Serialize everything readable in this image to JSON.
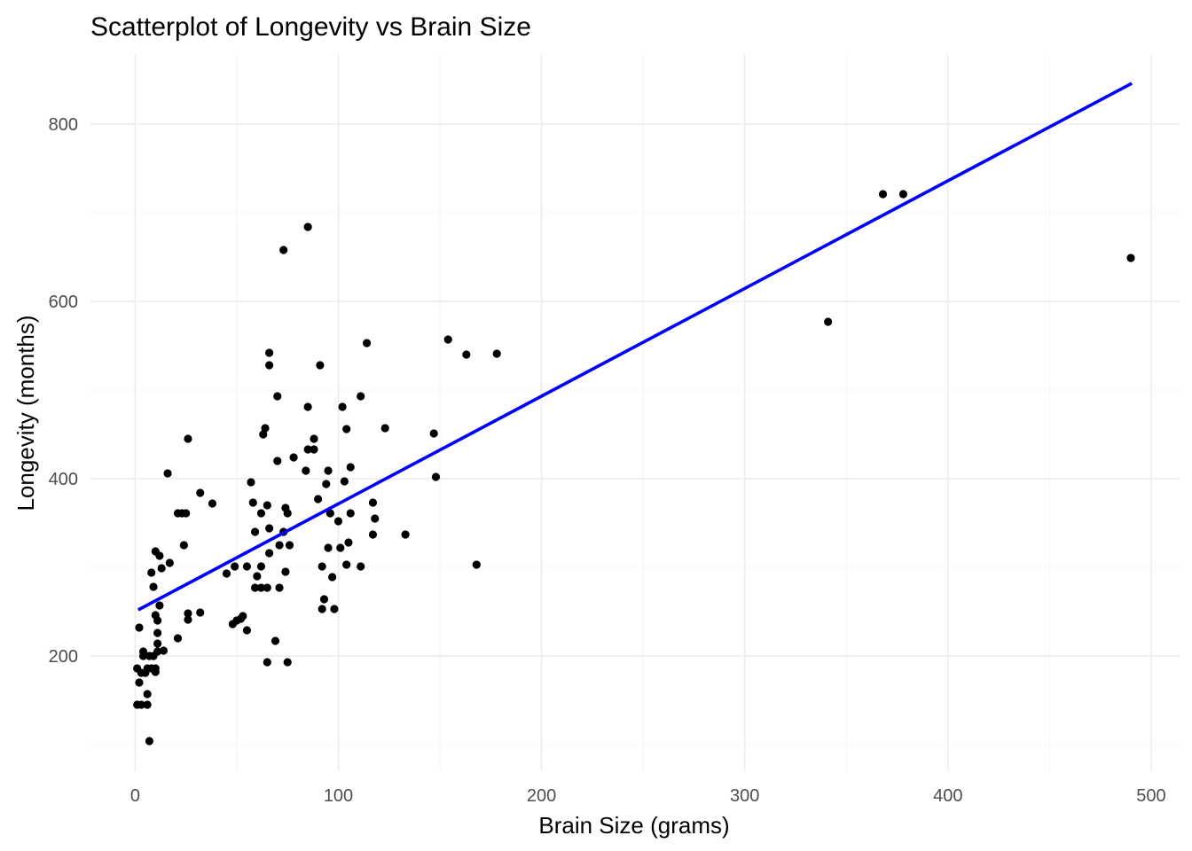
{
  "chart_data": {
    "type": "scatter",
    "title": "Scatterplot of Longevity vs Brain Size",
    "xlabel": "Brain Size (grams)",
    "ylabel": "Longevity (months)",
    "xlim": [
      -22,
      514
    ],
    "ylim": [
      70,
      878
    ],
    "x_ticks": [
      0,
      100,
      200,
      300,
      400,
      500
    ],
    "x_tick_labels": [
      "0",
      "100",
      "200",
      "300",
      "400",
      "500"
    ],
    "x_minor_ticks": [
      50,
      150,
      250,
      350,
      450
    ],
    "y_ticks": [
      200,
      400,
      600,
      800
    ],
    "y_tick_labels": [
      "200",
      "400",
      "600",
      "800"
    ],
    "y_minor_ticks": [
      100,
      300,
      500,
      700
    ],
    "grid": true,
    "legend": "none",
    "point_color": "#000000",
    "trend_line": {
      "type": "linear-fit",
      "color": "#0000ff",
      "x": [
        1.5,
        490.5
      ],
      "y": [
        252,
        846
      ]
    },
    "points": [
      {
        "x": 1,
        "y": 186
      },
      {
        "x": 1,
        "y": 145
      },
      {
        "x": 2,
        "y": 232
      },
      {
        "x": 2,
        "y": 170
      },
      {
        "x": 3,
        "y": 181
      },
      {
        "x": 3,
        "y": 145
      },
      {
        "x": 4,
        "y": 205
      },
      {
        "x": 4,
        "y": 200
      },
      {
        "x": 5,
        "y": 181
      },
      {
        "x": 6,
        "y": 186
      },
      {
        "x": 6,
        "y": 157
      },
      {
        "x": 6,
        "y": 145
      },
      {
        "x": 7,
        "y": 104
      },
      {
        "x": 7,
        "y": 200
      },
      {
        "x": 8,
        "y": 294
      },
      {
        "x": 8,
        "y": 186
      },
      {
        "x": 9,
        "y": 200
      },
      {
        "x": 9,
        "y": 278
      },
      {
        "x": 10,
        "y": 318
      },
      {
        "x": 10,
        "y": 246
      },
      {
        "x": 10,
        "y": 182
      },
      {
        "x": 10,
        "y": 186
      },
      {
        "x": 11,
        "y": 240
      },
      {
        "x": 11,
        "y": 226
      },
      {
        "x": 11,
        "y": 214
      },
      {
        "x": 11,
        "y": 205
      },
      {
        "x": 12,
        "y": 257
      },
      {
        "x": 12,
        "y": 313
      },
      {
        "x": 13,
        "y": 299
      },
      {
        "x": 14,
        "y": 206
      },
      {
        "x": 16,
        "y": 406
      },
      {
        "x": 17,
        "y": 305
      },
      {
        "x": 21,
        "y": 220
      },
      {
        "x": 21,
        "y": 361
      },
      {
        "x": 23,
        "y": 361
      },
      {
        "x": 24,
        "y": 325
      },
      {
        "x": 25,
        "y": 361
      },
      {
        "x": 26,
        "y": 445
      },
      {
        "x": 26,
        "y": 248
      },
      {
        "x": 26,
        "y": 241
      },
      {
        "x": 32,
        "y": 384
      },
      {
        "x": 32,
        "y": 249
      },
      {
        "x": 38,
        "y": 372
      },
      {
        "x": 45,
        "y": 293
      },
      {
        "x": 48,
        "y": 236
      },
      {
        "x": 49,
        "y": 301
      },
      {
        "x": 50,
        "y": 240
      },
      {
        "x": 52,
        "y": 242
      },
      {
        "x": 53,
        "y": 245
      },
      {
        "x": 55,
        "y": 229
      },
      {
        "x": 55,
        "y": 301
      },
      {
        "x": 57,
        "y": 396
      },
      {
        "x": 58,
        "y": 373
      },
      {
        "x": 59,
        "y": 277
      },
      {
        "x": 59,
        "y": 340
      },
      {
        "x": 60,
        "y": 290
      },
      {
        "x": 62,
        "y": 277
      },
      {
        "x": 62,
        "y": 361
      },
      {
        "x": 62,
        "y": 301
      },
      {
        "x": 63,
        "y": 450
      },
      {
        "x": 64,
        "y": 457
      },
      {
        "x": 65,
        "y": 193
      },
      {
        "x": 65,
        "y": 370
      },
      {
        "x": 65,
        "y": 277
      },
      {
        "x": 66,
        "y": 528
      },
      {
        "x": 66,
        "y": 542
      },
      {
        "x": 66,
        "y": 316
      },
      {
        "x": 66,
        "y": 344
      },
      {
        "x": 69,
        "y": 217
      },
      {
        "x": 70,
        "y": 420
      },
      {
        "x": 70,
        "y": 493
      },
      {
        "x": 71,
        "y": 277
      },
      {
        "x": 71,
        "y": 325
      },
      {
        "x": 73,
        "y": 658
      },
      {
        "x": 73,
        "y": 340
      },
      {
        "x": 74,
        "y": 367
      },
      {
        "x": 74,
        "y": 295
      },
      {
        "x": 75,
        "y": 361
      },
      {
        "x": 75,
        "y": 193
      },
      {
        "x": 76,
        "y": 325
      },
      {
        "x": 78,
        "y": 424
      },
      {
        "x": 84,
        "y": 409
      },
      {
        "x": 85,
        "y": 481
      },
      {
        "x": 85,
        "y": 433
      },
      {
        "x": 85,
        "y": 684
      },
      {
        "x": 88,
        "y": 445
      },
      {
        "x": 88,
        "y": 433
      },
      {
        "x": 90,
        "y": 377
      },
      {
        "x": 91,
        "y": 528
      },
      {
        "x": 92,
        "y": 301
      },
      {
        "x": 92,
        "y": 253
      },
      {
        "x": 93,
        "y": 264
      },
      {
        "x": 94,
        "y": 394
      },
      {
        "x": 95,
        "y": 409
      },
      {
        "x": 95,
        "y": 322
      },
      {
        "x": 96,
        "y": 361
      },
      {
        "x": 97,
        "y": 289
      },
      {
        "x": 98,
        "y": 253
      },
      {
        "x": 100,
        "y": 352
      },
      {
        "x": 101,
        "y": 322
      },
      {
        "x": 102,
        "y": 481
      },
      {
        "x": 103,
        "y": 397
      },
      {
        "x": 104,
        "y": 456
      },
      {
        "x": 104,
        "y": 303
      },
      {
        "x": 105,
        "y": 328
      },
      {
        "x": 106,
        "y": 413
      },
      {
        "x": 106,
        "y": 361
      },
      {
        "x": 111,
        "y": 493
      },
      {
        "x": 111,
        "y": 301
      },
      {
        "x": 114,
        "y": 553
      },
      {
        "x": 117,
        "y": 373
      },
      {
        "x": 117,
        "y": 337
      },
      {
        "x": 118,
        "y": 355
      },
      {
        "x": 123,
        "y": 457
      },
      {
        "x": 133,
        "y": 337
      },
      {
        "x": 147,
        "y": 451
      },
      {
        "x": 148,
        "y": 402
      },
      {
        "x": 154,
        "y": 557
      },
      {
        "x": 163,
        "y": 540
      },
      {
        "x": 168,
        "y": 303
      },
      {
        "x": 178,
        "y": 541
      },
      {
        "x": 341,
        "y": 577
      },
      {
        "x": 368,
        "y": 721
      },
      {
        "x": 378,
        "y": 721
      },
      {
        "x": 490,
        "y": 649
      }
    ]
  }
}
